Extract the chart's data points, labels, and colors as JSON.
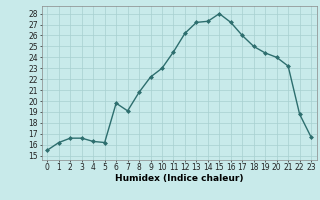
{
  "x": [
    0,
    1,
    2,
    3,
    4,
    5,
    6,
    7,
    8,
    9,
    10,
    11,
    12,
    13,
    14,
    15,
    16,
    17,
    18,
    19,
    20,
    21,
    22,
    23
  ],
  "y": [
    15.5,
    16.2,
    16.6,
    16.6,
    16.3,
    16.2,
    19.8,
    19.1,
    20.8,
    22.2,
    23.0,
    24.5,
    26.2,
    27.2,
    27.3,
    28.0,
    27.2,
    26.0,
    25.0,
    24.4,
    24.0,
    23.2,
    18.8,
    16.7
  ],
  "line_color": "#2d6e6e",
  "marker": "D",
  "marker_size": 2.0,
  "linewidth": 1.0,
  "bg_color": "#c8eaea",
  "grid_color": "#a8d0d0",
  "xlabel": "Humidex (Indice chaleur)",
  "ylabel_ticks": [
    15,
    16,
    17,
    18,
    19,
    20,
    21,
    22,
    23,
    24,
    25,
    26,
    27,
    28
  ],
  "ylim": [
    14.6,
    28.7
  ],
  "xlim": [
    -0.5,
    23.5
  ],
  "xticks": [
    0,
    1,
    2,
    3,
    4,
    5,
    6,
    7,
    8,
    9,
    10,
    11,
    12,
    13,
    14,
    15,
    16,
    17,
    18,
    19,
    20,
    21,
    22,
    23
  ],
  "tick_fontsize": 5.5,
  "xlabel_fontsize": 6.5
}
